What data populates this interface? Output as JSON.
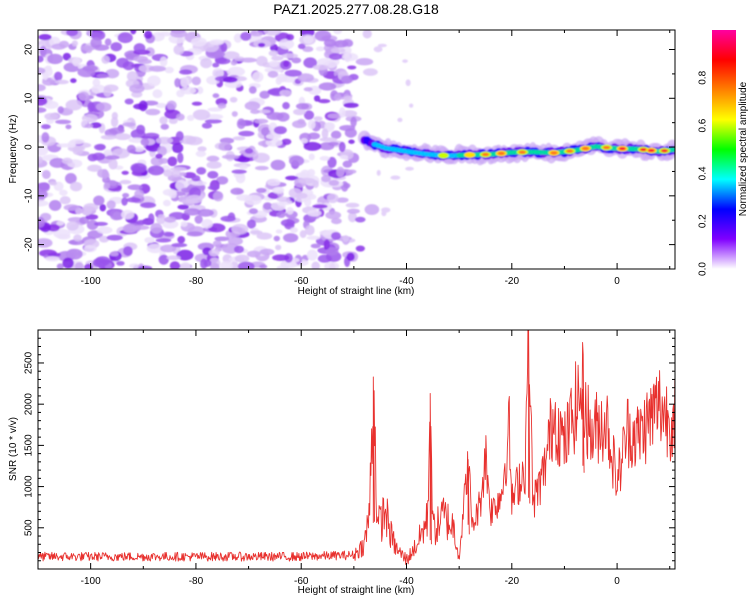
{
  "title": "PAZ1.2025.277.08.28.G18",
  "chart_data": [
    {
      "type": "heatmap",
      "name": "spectrogram",
      "xlabel": "Height of straight line (km)",
      "ylabel": "Frequency (Hz)",
      "xlim": [
        -110,
        11
      ],
      "ylim": [
        -25,
        24
      ],
      "xticks": [
        -100,
        -80,
        -60,
        -40,
        -20,
        0
      ],
      "yticks": [
        -20,
        -10,
        0,
        10,
        20
      ],
      "noise_region_x": [
        -110,
        -50
      ],
      "signal_track": {
        "x": [
          -48,
          -44,
          -40,
          -36,
          -32,
          -28,
          -24,
          -20,
          -16,
          -12,
          -8,
          -4,
          0,
          4,
          8,
          11
        ],
        "freq": [
          1.3,
          -0.2,
          -0.9,
          -1.5,
          -1.8,
          -1.6,
          -1.5,
          -1.1,
          -1.0,
          -1.2,
          -0.7,
          0.1,
          -0.3,
          -0.4,
          -0.9,
          -0.5
        ]
      },
      "colorbar": {
        "label": "Normalized spectral amplitude",
        "range": [
          0.0,
          1.0
        ],
        "ticks": [
          "0.0",
          "0.2",
          "0.4",
          "0.6",
          "0.8"
        ],
        "colors": [
          "#ffffff",
          "#8000ff",
          "#0000ff",
          "#00ffff",
          "#00ff00",
          "#ffff00",
          "#ff8000",
          "#ff0000",
          "#ff00a0"
        ]
      }
    },
    {
      "type": "line",
      "name": "snr",
      "xlabel": "Height of straight line (km)",
      "ylabel": "SNR (10 * v/v)",
      "xlim": [
        -110,
        11
      ],
      "ylim": [
        0,
        2900
      ],
      "xticks": [
        -100,
        -80,
        -60,
        -40,
        -20,
        0
      ],
      "yticks": [
        500,
        1000,
        1500,
        2000,
        2500
      ],
      "color": "#e8312e",
      "x": [
        -110,
        -60,
        -50,
        -48,
        -47,
        -46.3,
        -45.5,
        -44,
        -43,
        -42,
        -40,
        -38,
        -36,
        -35.5,
        -35,
        -34.3,
        -33,
        -31,
        -30,
        -28.3,
        -27.5,
        -26,
        -25,
        -24,
        -22,
        -20.5,
        -20,
        -18.5,
        -17.5,
        -16.8,
        -16,
        -14,
        -12,
        -10,
        -8,
        -6.5,
        -5,
        -3.5,
        -2,
        0,
        2,
        4,
        6,
        8,
        10,
        11
      ],
      "y": [
        150,
        150,
        170,
        300,
        700,
        2330,
        500,
        700,
        420,
        250,
        110,
        300,
        600,
        2130,
        500,
        500,
        650,
        500,
        150,
        1300,
        500,
        800,
        1400,
        700,
        900,
        1700,
        800,
        1100,
        1200,
        2900,
        800,
        1150,
        1900,
        1500,
        1950,
        2180,
        1600,
        1750,
        1800,
        1050,
        1700,
        1600,
        1800,
        2000,
        1800,
        1950
      ]
    }
  ]
}
